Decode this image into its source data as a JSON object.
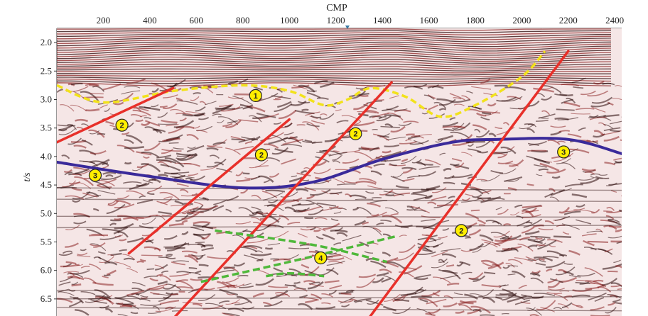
{
  "x_axis": {
    "title": "CMP",
    "ticks": [
      "200",
      "400",
      "600",
      "800",
      "1000",
      "1200",
      "1400",
      "1600",
      "1800",
      "2000",
      "2200",
      "2400"
    ],
    "tick_values": [
      200,
      400,
      600,
      800,
      1000,
      1200,
      1400,
      1600,
      1800,
      2000,
      2200,
      2400
    ],
    "range": [
      0,
      2430
    ],
    "pointer_value": 1250
  },
  "y_axis": {
    "title": "t/s",
    "ticks": [
      "2.0",
      "2.5",
      "3.0",
      "3.5",
      "4.0",
      "4.5",
      "5.0",
      "5.5",
      "6.0",
      "6.5"
    ],
    "tick_values": [
      2.0,
      2.5,
      3.0,
      3.5,
      4.0,
      4.5,
      5.0,
      5.5,
      6.0,
      6.5
    ],
    "range": [
      1.75,
      6.8
    ]
  },
  "colors": {
    "horizon_1": "#f2e21b",
    "fault_2": "#e8302a",
    "horizon_3": "#3a2a9a",
    "feature_4": "#4fb83a",
    "marker_fill": "#ffee00",
    "seismic_bg": "#f5e6e6",
    "seismic_trace": "#8a2323",
    "seismic_dark": "#2a0a0a"
  },
  "interpretations": {
    "horizon_1": [
      [
        0,
        2.75
      ],
      [
        200,
        3.05
      ],
      [
        500,
        2.85
      ],
      [
        800,
        2.75
      ],
      [
        1000,
        2.85
      ],
      [
        1150,
        3.1
      ],
      [
        1250,
        3.0
      ],
      [
        1350,
        2.8
      ],
      [
        1500,
        2.95
      ],
      [
        1650,
        3.3
      ],
      [
        1800,
        3.1
      ],
      [
        2000,
        2.6
      ],
      [
        2100,
        2.15
      ]
    ],
    "horizon_3": [
      [
        0,
        4.1
      ],
      [
        400,
        4.35
      ],
      [
        800,
        4.55
      ],
      [
        1100,
        4.45
      ],
      [
        1400,
        4.05
      ],
      [
        1700,
        3.75
      ],
      [
        1900,
        3.7
      ],
      [
        2200,
        3.7
      ],
      [
        2430,
        3.95
      ]
    ],
    "faults_2": [
      [
        [
          0,
          3.75
        ],
        [
          500,
          2.8
        ]
      ],
      [
        [
          310,
          5.7
        ],
        [
          1000,
          3.35
        ]
      ],
      [
        [
          500,
          6.85
        ],
        [
          1440,
          2.7
        ]
      ],
      [
        [
          1340,
          6.85
        ],
        [
          2200,
          2.15
        ]
      ]
    ],
    "feature_4": [
      [
        [
          680,
          5.3
        ],
        [
          1100,
          5.55
        ],
        [
          1420,
          5.85
        ]
      ],
      [
        [
          620,
          6.2
        ],
        [
          1000,
          5.85
        ],
        [
          1460,
          5.4
        ]
      ],
      [
        [
          900,
          6.1
        ],
        [
          1000,
          6.05
        ],
        [
          1150,
          6.1
        ]
      ]
    ]
  },
  "markers": [
    {
      "label": "1",
      "x": 855,
      "t": 2.93
    },
    {
      "label": "2",
      "x": 280,
      "t": 3.45
    },
    {
      "label": "2",
      "x": 880,
      "t": 3.97
    },
    {
      "label": "2",
      "x": 1285,
      "t": 3.6
    },
    {
      "label": "2",
      "x": 1740,
      "t": 5.3
    },
    {
      "label": "3",
      "x": 165,
      "t": 4.33
    },
    {
      "label": "3",
      "x": 2180,
      "t": 3.92
    },
    {
      "label": "4",
      "x": 1135,
      "t": 5.78
    }
  ]
}
